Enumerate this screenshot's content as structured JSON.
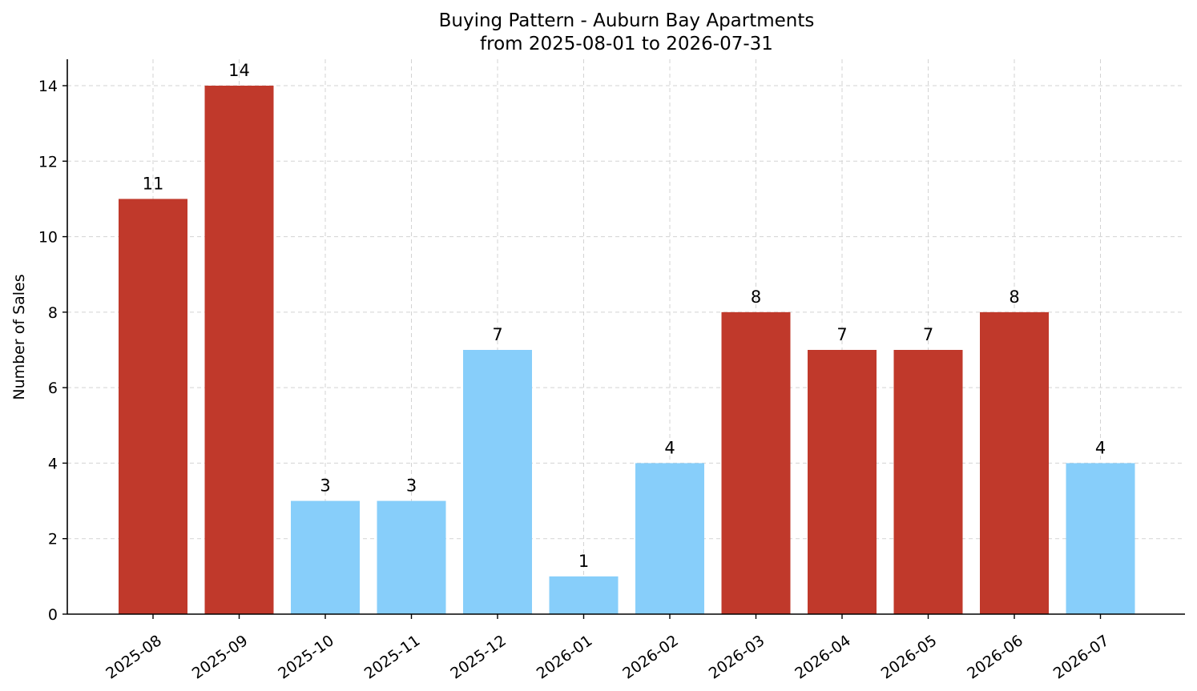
{
  "chart_data": {
    "type": "bar",
    "title": "Buying Pattern - Auburn Bay Apartments",
    "subtitle": "from 2025-08-01 to 2026-07-31",
    "xlabel": "",
    "ylabel": "Number of Sales",
    "categories": [
      "2025-08",
      "2025-09",
      "2025-10",
      "2025-11",
      "2025-12",
      "2026-01",
      "2026-02",
      "2026-03",
      "2026-04",
      "2026-05",
      "2026-06",
      "2026-07"
    ],
    "values": [
      11,
      14,
      3,
      3,
      7,
      1,
      4,
      8,
      7,
      7,
      8,
      4
    ],
    "bar_colors": [
      "#c0392b",
      "#c0392b",
      "#87cefa",
      "#87cefa",
      "#87cefa",
      "#87cefa",
      "#87cefa",
      "#c0392b",
      "#c0392b",
      "#c0392b",
      "#c0392b",
      "#87cefa"
    ],
    "ylim": [
      0,
      14.7
    ],
    "yticks": [
      0,
      2,
      4,
      6,
      8,
      10,
      12,
      14
    ],
    "grid": true,
    "legend": "none"
  }
}
